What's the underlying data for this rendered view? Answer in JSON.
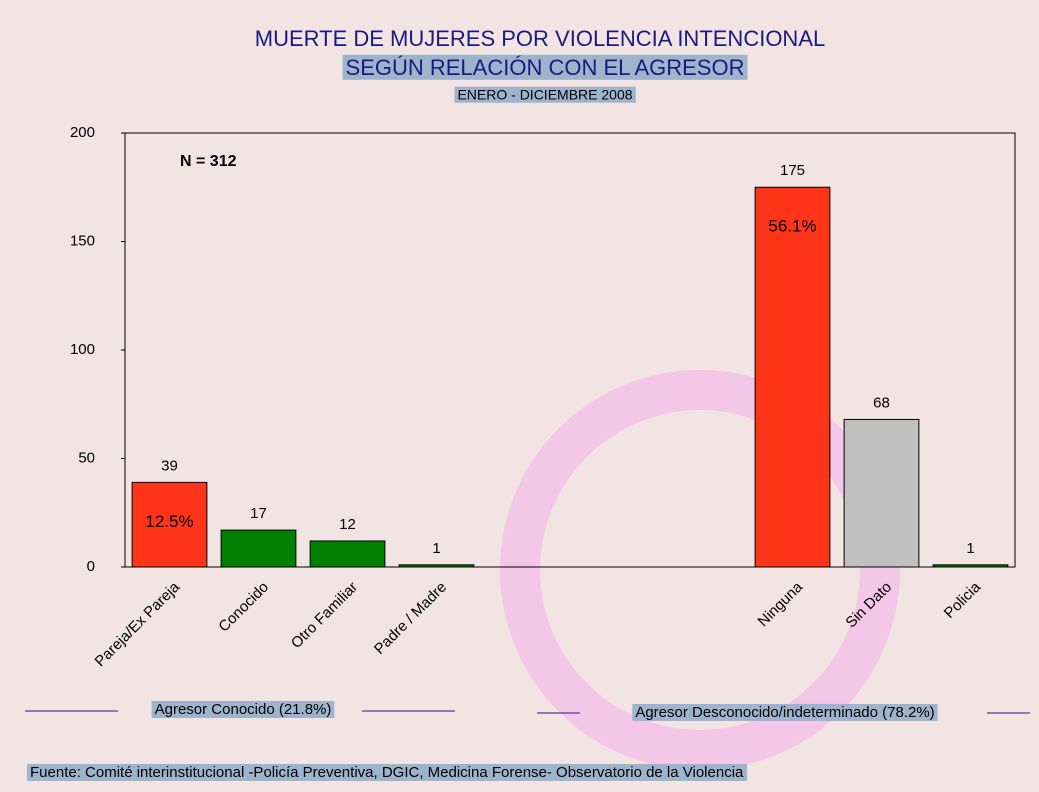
{
  "chart_data": {
    "type": "bar",
    "title": "MUERTE DE MUJERES POR VIOLENCIA INTENCIONAL",
    "subtitle": "SEGÚN RELACIÓN CON EL AGRESOR",
    "period": "ENERO - DICIEMBRE 2008",
    "annotation": "N = 312",
    "categories": [
      "Pareja/Ex Pareja",
      "Conocido",
      "Otro Familiar",
      "Padre / Madre",
      null,
      null,
      null,
      "Ninguna",
      "Sin Dato",
      "Policia"
    ],
    "values": [
      39,
      17,
      12,
      1,
      null,
      null,
      null,
      175,
      68,
      1
    ],
    "colors": [
      "#ff3419",
      "#008000",
      "#008000",
      "#008000",
      null,
      null,
      null,
      "#ff3419",
      "#c0c0c0",
      "#008000"
    ],
    "percent_labels": [
      "12.5%",
      null,
      null,
      null,
      null,
      null,
      null,
      "56.1%",
      null,
      null
    ],
    "ylim": [
      0,
      200
    ],
    "yticks": [
      0,
      50,
      100,
      150,
      200
    ],
    "groups": [
      "Agresor Conocido (21.8%)",
      "Agresor Desconocido/indeterminado (78.2%)"
    ],
    "source": "Fuente: Comité interinstitucional -Policía Preventiva, DGIC, Medicina Forense- Observatorio de la Violencia"
  }
}
